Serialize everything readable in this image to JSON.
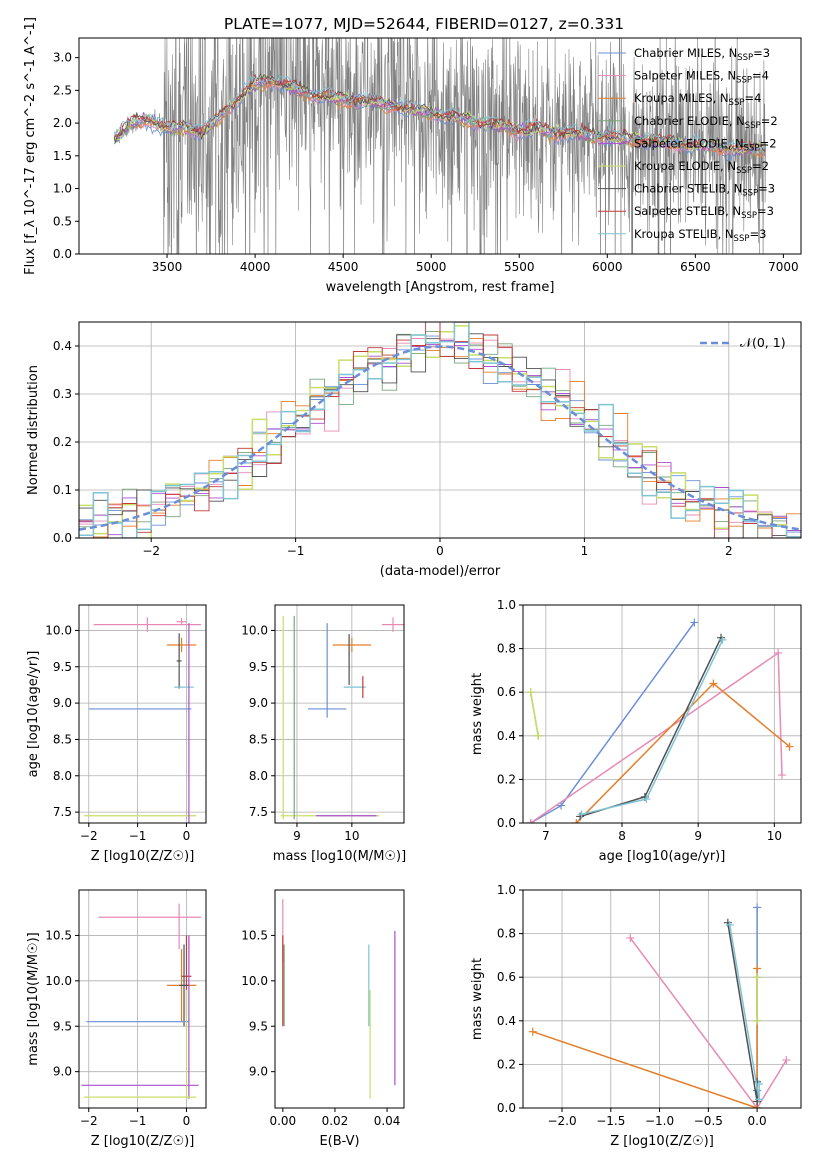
{
  "title": "PLATE=1077, MJD=52644, FIBERID=0127, z=0.331",
  "colors": {
    "chabrier_miles": "#6a8fd8",
    "salpeter_miles": "#e88ab5",
    "kroupa_miles": "#e57e2a",
    "chabrier_elodie": "#7aa57a",
    "salpeter_elodie": "#a94fd0",
    "kroupa_elodie": "#c7df6a",
    "chabrier_stelib": "#505050",
    "salpeter_stelib": "#c43a3a",
    "kroupa_stelib": "#7fc4d4",
    "data_gray": "#808080",
    "normal_curve": "#6a8fd8"
  },
  "legend": {
    "spectrum": [
      {
        "name": "Chabrier MILES, N",
        "sub": "SSP",
        "suffix": "=3",
        "color_key": "chabrier_miles"
      },
      {
        "name": "Salpeter MILES, N",
        "sub": "SSP",
        "suffix": "=4",
        "color_key": "salpeter_miles"
      },
      {
        "name": "Kroupa MILES, N",
        "sub": "SSP",
        "suffix": "=4",
        "color_key": "kroupa_miles"
      },
      {
        "name": "Chabrier ELODIE, N",
        "sub": "SSP",
        "suffix": "=2",
        "color_key": "chabrier_elodie"
      },
      {
        "name": "Salpeter ELODIE, N",
        "sub": "SSP",
        "suffix": "=2",
        "color_key": "salpeter_elodie"
      },
      {
        "name": "Kroupa ELODIE, N",
        "sub": "SSP",
        "suffix": "=2",
        "color_key": "kroupa_elodie"
      },
      {
        "name": "Chabrier STELIB, N",
        "sub": "SSP",
        "suffix": "=3",
        "color_key": "chabrier_stelib"
      },
      {
        "name": "Salpeter STELIB, N",
        "sub": "SSP",
        "suffix": "=3",
        "color_key": "salpeter_stelib"
      },
      {
        "name": "Kroupa STELIB, N",
        "sub": "SSP",
        "suffix": "=3",
        "color_key": "kroupa_stelib"
      }
    ],
    "normal": "𝒩(0, 1)"
  },
  "chart_data": [
    {
      "id": "spectrum",
      "type": "line",
      "xlabel": "wavelength [Angstrom, rest frame]",
      "ylabel": "Flux [f_λ 10^-17 erg cm^-2 s^-1 A^-1]",
      "xlim": [
        3000,
        7100
      ],
      "ylim": [
        0,
        3.3
      ],
      "xticks": [
        3500,
        4000,
        4500,
        5000,
        5500,
        6000,
        6500,
        7000
      ],
      "yticks": [
        0.0,
        0.5,
        1.0,
        1.5,
        2.0,
        2.5,
        3.0
      ],
      "grid": false,
      "legend_position": "top-right",
      "data_range": [
        3200,
        6900
      ],
      "model_x": [
        3200,
        3300,
        3400,
        3500,
        3600,
        3700,
        3800,
        3900,
        4000,
        4100,
        4200,
        4300,
        4400,
        4500,
        4600,
        4700,
        4800,
        4900,
        5000,
        5100,
        5200,
        5300,
        5400,
        5500,
        5600,
        5700,
        5800,
        5900,
        6000,
        6100,
        6200,
        6300,
        6400,
        6500,
        6600,
        6700,
        6800,
        6900
      ],
      "model_y": [
        1.75,
        2.0,
        2.05,
        1.9,
        1.95,
        1.85,
        2.1,
        2.35,
        2.6,
        2.65,
        2.55,
        2.45,
        2.4,
        2.35,
        2.35,
        2.3,
        2.25,
        2.2,
        2.15,
        2.1,
        2.05,
        2.0,
        1.95,
        1.9,
        1.9,
        1.85,
        1.85,
        1.8,
        1.8,
        1.75,
        1.75,
        1.7,
        1.7,
        1.65,
        1.65,
        1.6,
        1.6,
        1.6
      ]
    },
    {
      "id": "residuals",
      "type": "step",
      "xlabel": "(data-model)/error",
      "ylabel": "Normed distribution",
      "xlim": [
        -2.5,
        2.5
      ],
      "ylim": [
        0,
        0.45
      ],
      "xticks": [
        -2,
        -1,
        0,
        1,
        2
      ],
      "yticks": [
        0.0,
        0.1,
        0.2,
        0.3,
        0.4
      ],
      "grid": true,
      "legend_position": "top-right",
      "normal_curve": {
        "mean": 0,
        "sigma": 1
      }
    },
    {
      "id": "age_vs_Z",
      "type": "errorbar",
      "xlabel": "Z [log10(Z/Z☉)]",
      "ylabel": "age  [log10(age/yr)]",
      "xlim": [
        -2.2,
        0.4
      ],
      "ylim": [
        7.35,
        10.35
      ],
      "xticks": [
        -2,
        -1,
        0
      ],
      "yticks": [
        7.5,
        8.0,
        8.5,
        9.0,
        9.5,
        10.0
      ],
      "grid": true,
      "points": [
        {
          "model": "salpeter_miles",
          "x": -0.8,
          "xerr": 1.1,
          "y": 10.08,
          "yerr": 0.1
        },
        {
          "model": "salpeter_miles",
          "x": -0.1,
          "xerr": 0.1,
          "y": 10.12,
          "yerr": 0.05
        },
        {
          "model": "kroupa_miles",
          "x": -0.1,
          "xerr": 0.3,
          "y": 9.8,
          "yerr": 0.1
        },
        {
          "model": "chabrier_stelib",
          "x": -0.15,
          "xerr": 0.05,
          "y": 9.58,
          "yerr": 0.38
        },
        {
          "model": "kroupa_stelib",
          "x": -0.05,
          "xerr": 0.2,
          "y": 9.22,
          "yerr": 0.0
        },
        {
          "model": "chabrier_miles",
          "x": -0.95,
          "xerr": 1.05,
          "y": 8.92,
          "yerr": 0.0
        },
        {
          "model": "kroupa_elodie",
          "x": -0.95,
          "xerr": 1.15,
          "y": 7.45,
          "yerr": 0.0
        },
        {
          "model": "salpeter_elodie",
          "x": 0.05,
          "xerr": 0.0,
          "y": 8.7,
          "yerr": 1.4
        }
      ]
    },
    {
      "id": "age_vs_mass",
      "type": "errorbar",
      "xlabel": "mass [log10(M/M☉)]",
      "ylabel": "",
      "xlim": [
        8.6,
        10.95
      ],
      "ylim": [
        7.35,
        10.35
      ],
      "xticks": [
        9,
        10
      ],
      "yticks": [
        7.5,
        8.0,
        8.5,
        9.0,
        9.5,
        10.0
      ],
      "grid": true,
      "points": [
        {
          "model": "salpeter_miles",
          "x": 10.75,
          "xerr": 0.2,
          "y": 10.08,
          "yerr": 0.1
        },
        {
          "model": "kroupa_miles",
          "x": 10.0,
          "xerr": 0.35,
          "y": 9.8,
          "yerr": 0.1
        },
        {
          "model": "chabrier_miles",
          "x": 9.55,
          "xerr": 0.35,
          "y": 8.92,
          "yerr": 0.0
        },
        {
          "model": "chabrier_miles",
          "x": 9.55,
          "xerr": 0.0,
          "y": 9.45,
          "yerr": 0.65
        },
        {
          "model": "chabrier_stelib",
          "x": 9.95,
          "xerr": 0.0,
          "y": 9.6,
          "yerr": 0.35
        },
        {
          "model": "kroupa_stelib",
          "x": 10.05,
          "xerr": 0.2,
          "y": 9.22,
          "yerr": 0.0
        },
        {
          "model": "salpeter_stelib",
          "x": 10.2,
          "xerr": 0.0,
          "y": 9.22,
          "yerr": 0.15
        },
        {
          "model": "kroupa_elodie",
          "x": 9.6,
          "xerr": 0.9,
          "y": 7.45,
          "yerr": 0.0
        },
        {
          "model": "salpeter_elodie",
          "x": 9.9,
          "xerr": 0.55,
          "y": 7.45,
          "yerr": 0.0
        },
        {
          "model": "kroupa_elodie",
          "x": 8.75,
          "xerr": 0.0,
          "y": 8.8,
          "yerr": 1.4
        },
        {
          "model": "chabrier_elodie",
          "x": 8.95,
          "xerr": 0.0,
          "y": 8.8,
          "yerr": 1.4
        }
      ]
    },
    {
      "id": "weight_vs_age",
      "type": "line",
      "xlabel": "age  [log10(age/yr)]",
      "ylabel": "mass weight",
      "xlim": [
        6.7,
        10.35
      ],
      "ylim": [
        0,
        1.0
      ],
      "xticks": [
        7,
        8,
        9,
        10
      ],
      "yticks": [
        0.0,
        0.2,
        0.4,
        0.6,
        0.8,
        1.0
      ],
      "grid": true,
      "series": [
        {
          "model": "chabrier_miles",
          "x": [
            6.8,
            7.2,
            8.95
          ],
          "y": [
            0.0,
            0.08,
            0.92
          ]
        },
        {
          "model": "salpeter_miles",
          "x": [
            6.8,
            10.05,
            10.1
          ],
          "y": [
            0.0,
            0.78,
            0.22
          ]
        },
        {
          "model": "kroupa_miles",
          "x": [
            7.4,
            9.2,
            10.2
          ],
          "y": [
            0.0,
            0.64,
            0.35
          ]
        },
        {
          "model": "chabrier_elodie",
          "x": [
            6.8,
            6.9
          ],
          "y": [
            0.6,
            0.4
          ]
        },
        {
          "model": "kroupa_elodie",
          "x": [
            6.8,
            6.9
          ],
          "y": [
            0.6,
            0.4
          ]
        },
        {
          "model": "chabrier_stelib",
          "x": [
            7.45,
            8.3,
            9.3
          ],
          "y": [
            0.03,
            0.12,
            0.85
          ]
        },
        {
          "model": "kroupa_stelib",
          "x": [
            7.47,
            8.32,
            9.32
          ],
          "y": [
            0.04,
            0.11,
            0.84
          ]
        }
      ]
    },
    {
      "id": "mass_vs_Z",
      "type": "errorbar",
      "xlabel": "Z [log10(Z/Z☉)]",
      "ylabel": "mass [log10(M/M☉)]",
      "xlim": [
        -2.2,
        0.4
      ],
      "ylim": [
        8.6,
        11.0
      ],
      "xticks": [
        -2,
        -1,
        0
      ],
      "yticks": [
        9.0,
        9.5,
        10.0,
        10.5
      ],
      "grid": true,
      "points": [
        {
          "model": "salpeter_miles",
          "x": -0.75,
          "xerr": 1.05,
          "y": 10.7,
          "yerr": 0.0
        },
        {
          "model": "salpeter_miles",
          "x": -0.15,
          "xerr": 0.0,
          "y": 10.6,
          "yerr": 0.25
        },
        {
          "model": "kroupa_miles",
          "x": -0.1,
          "xerr": 0.3,
          "y": 9.95,
          "yerr": 0.4
        },
        {
          "model": "salpeter_stelib",
          "x": 0.0,
          "xerr": 0.1,
          "y": 10.05,
          "yerr": 0.45
        },
        {
          "model": "chabrier_stelib",
          "x": -0.05,
          "xerr": 0.1,
          "y": 9.95,
          "yerr": 0.45
        },
        {
          "model": "chabrier_miles",
          "x": -1.0,
          "xerr": 1.05,
          "y": 9.55,
          "yerr": 0.0
        },
        {
          "model": "salpeter_elodie",
          "x": -0.95,
          "xerr": 1.2,
          "y": 8.85,
          "yerr": 0.0
        },
        {
          "model": "salpeter_elodie",
          "x": 0.05,
          "xerr": 0.0,
          "y": 9.6,
          "yerr": 0.9
        },
        {
          "model": "kroupa_elodie",
          "x": -0.95,
          "xerr": 1.15,
          "y": 8.72,
          "yerr": 0.0
        },
        {
          "model": "kroupa_elodie",
          "x": 0.0,
          "xerr": 0.0,
          "y": 9.3,
          "yerr": 0.6
        }
      ]
    },
    {
      "id": "mass_vs_ebv",
      "type": "errorbar",
      "xlabel": "E(B-V)",
      "ylabel": "",
      "xlim": [
        -0.003,
        0.0465
      ],
      "ylim": [
        8.6,
        11.0
      ],
      "xticks": [
        0.0,
        0.02,
        0.04
      ],
      "yticks": [
        9.0,
        9.5,
        10.0,
        10.5
      ],
      "grid": false,
      "points": [
        {
          "model": "salpeter_miles",
          "x": 0.0,
          "xerr": 0.0,
          "y": 10.55,
          "yerr": 0.35
        },
        {
          "model": "salpeter_stelib",
          "x": 0.0,
          "xerr": 0.0,
          "y": 10.0,
          "yerr": 0.5
        },
        {
          "model": "chabrier_elodie",
          "x": 0.0005,
          "xerr": 0.0,
          "y": 9.95,
          "yerr": 0.45
        },
        {
          "model": "kroupa_stelib",
          "x": 0.033,
          "xerr": 0.0,
          "y": 9.95,
          "yerr": 0.45
        },
        {
          "model": "kroupa_elodie",
          "x": 0.0335,
          "xerr": 0.0,
          "y": 9.3,
          "yerr": 0.6
        },
        {
          "model": "salpeter_elodie",
          "x": 0.043,
          "xerr": 0.0,
          "y": 9.7,
          "yerr": 0.85
        }
      ]
    },
    {
      "id": "weight_vs_Z",
      "type": "line",
      "xlabel": "Z [log10(Z/Z☉)]",
      "ylabel": "mass weight",
      "xlim": [
        -2.4,
        0.45
      ],
      "ylim": [
        0,
        1.0
      ],
      "xticks": [
        -2.0,
        -1.5,
        -1.0,
        -0.5,
        0.0
      ],
      "yticks": [
        0.0,
        0.2,
        0.4,
        0.6,
        0.8,
        1.0
      ],
      "grid": true,
      "series": [
        {
          "model": "chabrier_miles",
          "x": [
            0.0,
            0.0,
            0.0
          ],
          "y": [
            0.0,
            0.08,
            0.92
          ]
        },
        {
          "model": "salpeter_miles",
          "x": [
            -1.3,
            0.0,
            0.3
          ],
          "y": [
            0.78,
            0.0,
            0.22
          ]
        },
        {
          "model": "kroupa_miles",
          "x": [
            -2.3,
            0.0,
            0.0
          ],
          "y": [
            0.35,
            0.0,
            0.64
          ]
        },
        {
          "model": "chabrier_elodie",
          "x": [
            0.0,
            0.0
          ],
          "y": [
            0.6,
            0.4
          ]
        },
        {
          "model": "kroupa_elodie",
          "x": [
            0.0,
            0.0
          ],
          "y": [
            0.6,
            0.4
          ]
        },
        {
          "model": "chabrier_stelib",
          "x": [
            -0.3,
            0.0,
            0.0
          ],
          "y": [
            0.85,
            0.03,
            0.12
          ]
        },
        {
          "model": "kroupa_stelib",
          "x": [
            -0.28,
            0.02,
            0.02
          ],
          "y": [
            0.84,
            0.04,
            0.11
          ]
        }
      ]
    }
  ]
}
